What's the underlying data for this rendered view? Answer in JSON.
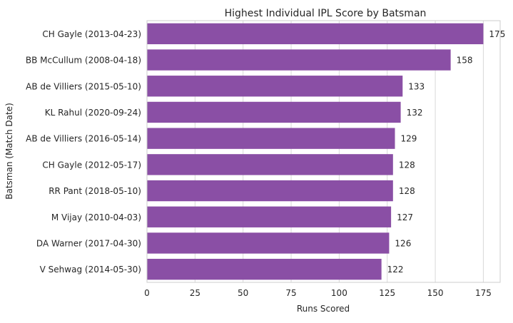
{
  "chart_data": {
    "type": "bar",
    "orientation": "horizontal",
    "title": "Highest Individual IPL Score by Batsman",
    "xlabel": "Runs Scored",
    "ylabel": "Batsman (Match Date)",
    "categories": [
      "CH Gayle (2013-04-23)",
      "BB McCullum (2008-04-18)",
      "AB de Villiers (2015-05-10)",
      "KL Rahul (2020-09-24)",
      "AB de Villiers (2016-05-14)",
      "CH Gayle (2012-05-17)",
      "RR Pant (2018-05-10)",
      "M Vijay (2010-04-03)",
      "DA Warner (2017-04-30)",
      "V Sehwag (2014-05-30)"
    ],
    "values": [
      175,
      158,
      133,
      132,
      129,
      128,
      128,
      127,
      126,
      122
    ],
    "data_labels": [
      "175",
      "158",
      "133",
      "132",
      "129",
      "128",
      "128",
      "127",
      "126",
      "122"
    ],
    "xticks": [
      0,
      25,
      50,
      75,
      100,
      125,
      150,
      175
    ],
    "xtick_labels": [
      "0",
      "25",
      "50",
      "75",
      "100",
      "125",
      "150",
      "175"
    ],
    "xlim": [
      0,
      183.75
    ],
    "grid": true,
    "bar_color": "#8a4fa5",
    "grid_color": "#d9d9d9",
    "spine_color": "#cccccc"
  }
}
